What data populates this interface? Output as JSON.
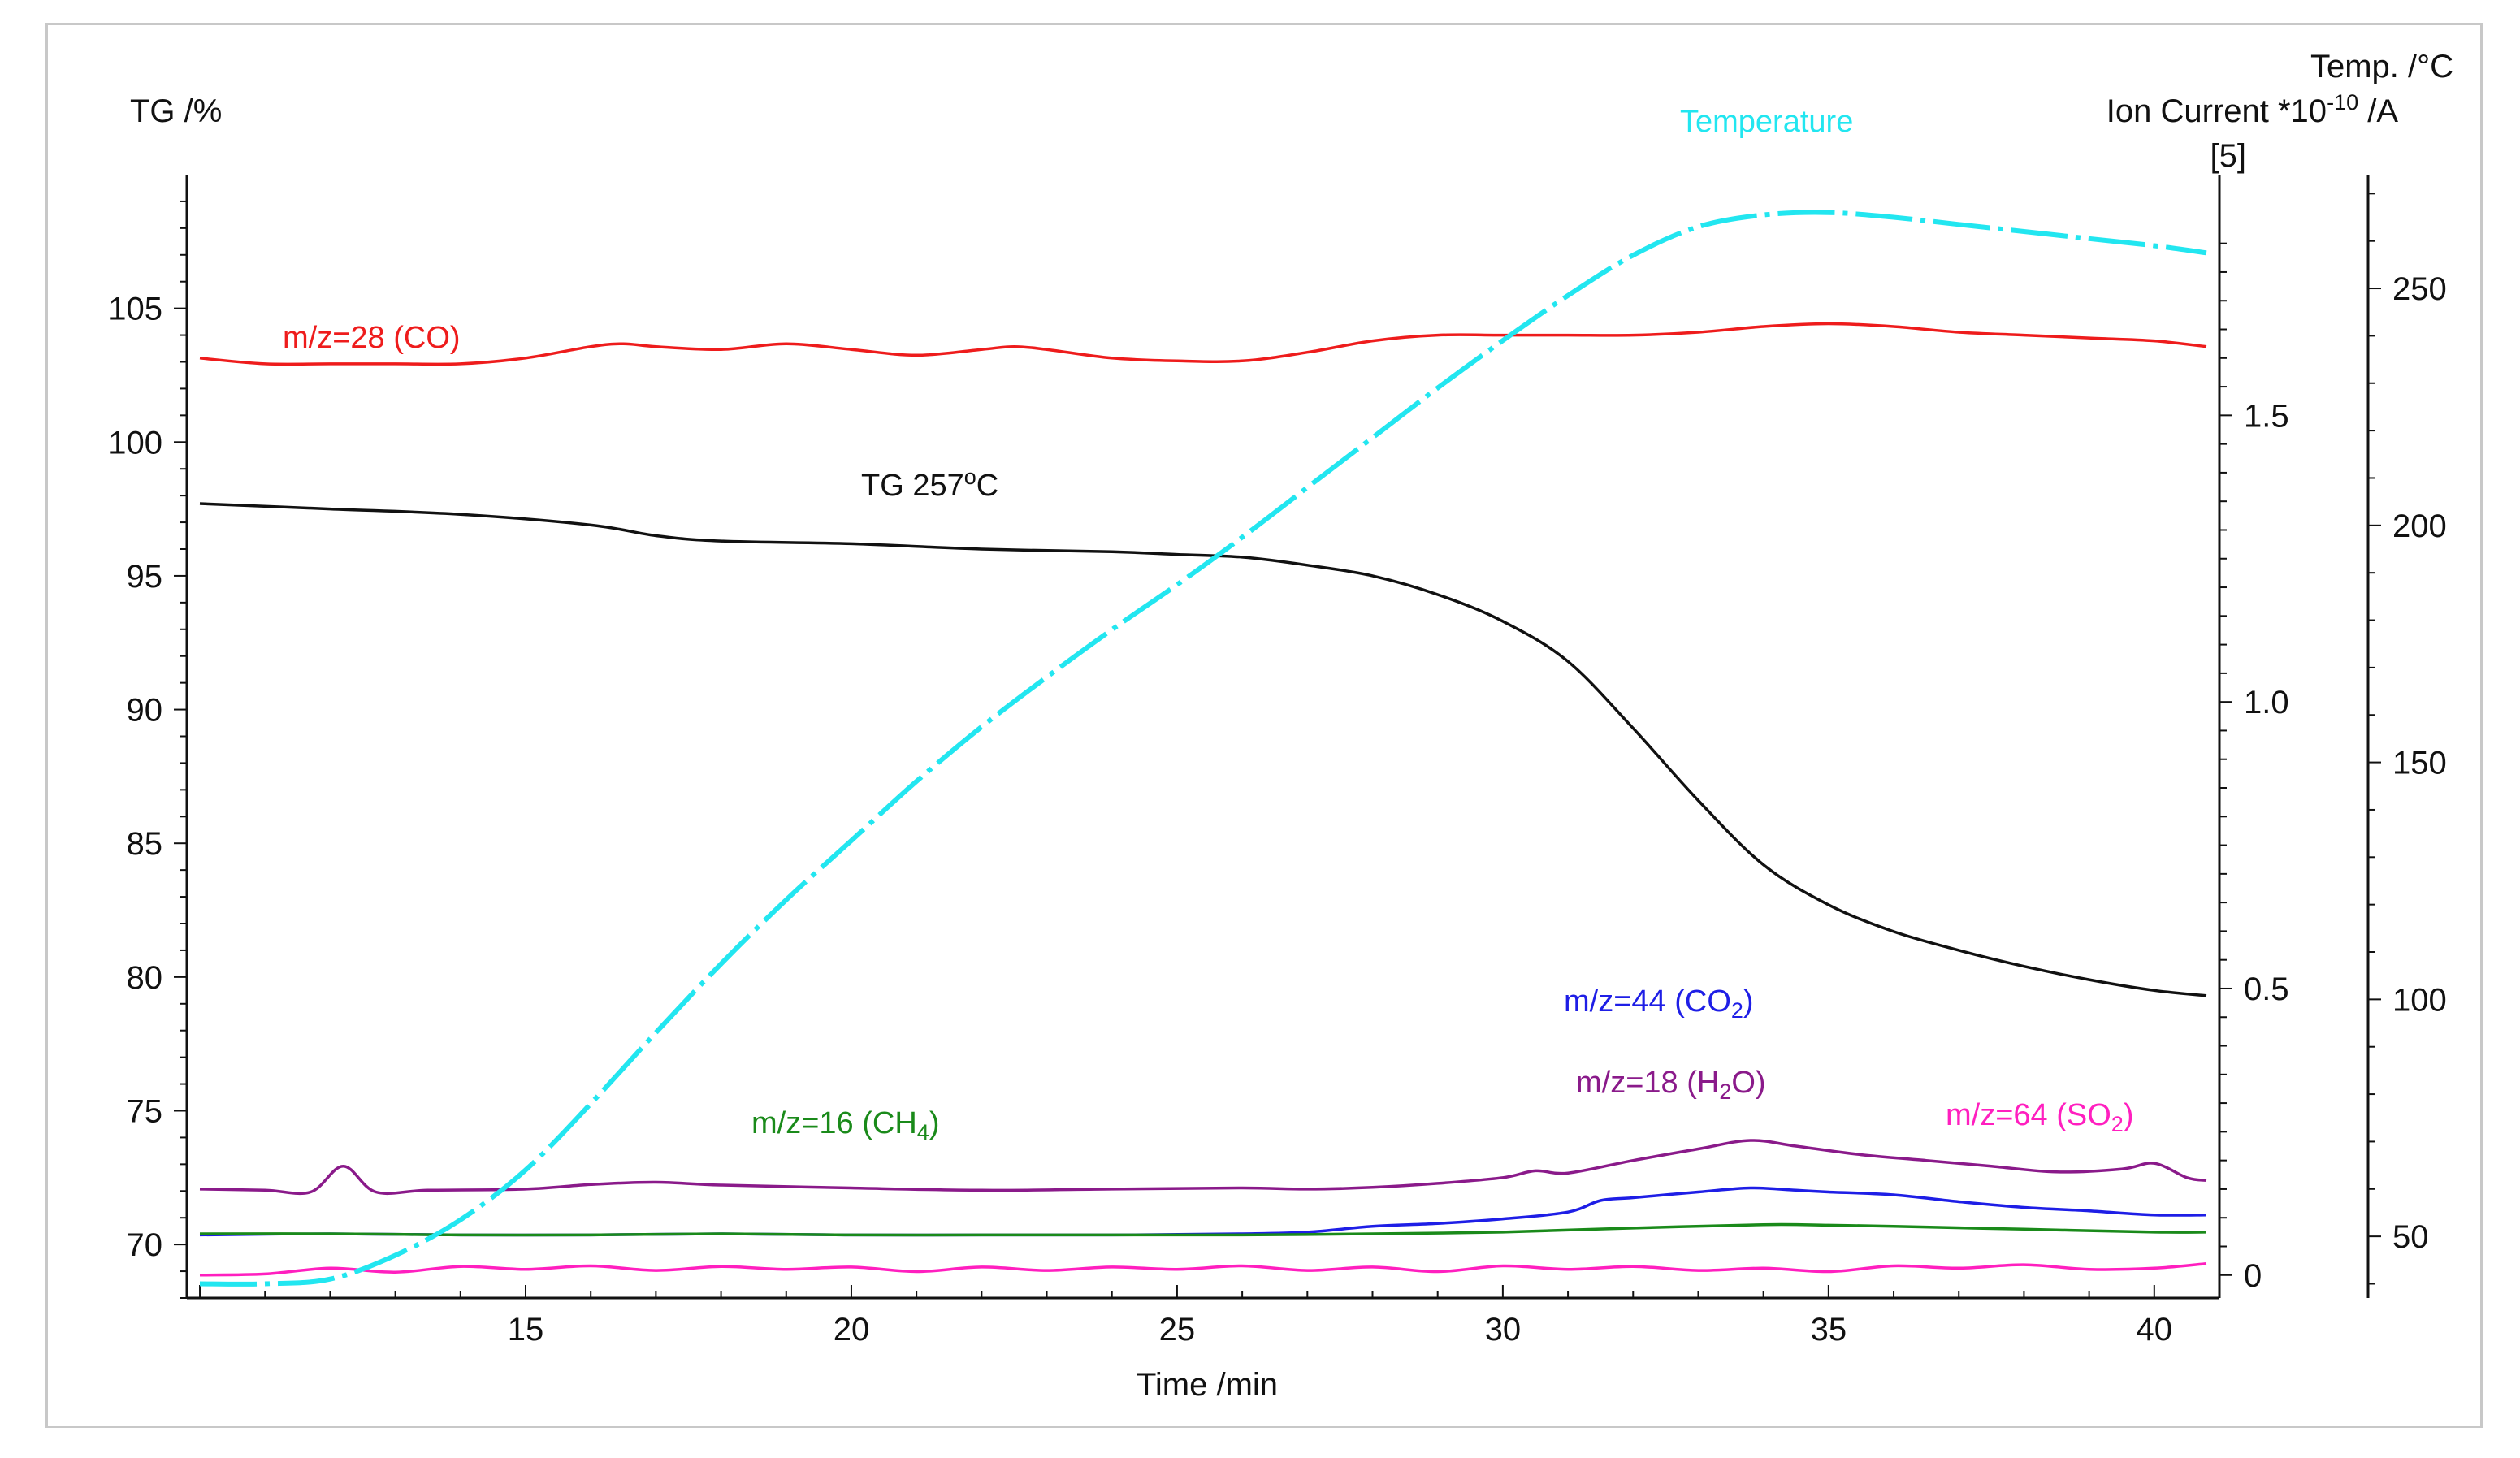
{
  "chart_data": {
    "type": "line",
    "xlabel": "Time /min",
    "x_ticks": [
      "15",
      "20",
      "25",
      "30",
      "35",
      "40"
    ],
    "xlim": [
      9.8,
      41.0
    ],
    "axes": {
      "tg": {
        "title": "TG /%",
        "ticks": [
          "70",
          "75",
          "80",
          "85",
          "90",
          "95",
          "100",
          "105"
        ],
        "ylim": [
          68.0,
          110.0
        ]
      },
      "ion": {
        "title": "Ion Current *10",
        "title_exp": "-10",
        "title_unit": " /A",
        "scale_note": "[5]",
        "ticks": [
          "0",
          "0.5",
          "1.0",
          "1.5"
        ],
        "ylim": [
          -0.04,
          1.92
        ]
      },
      "temp": {
        "title": "Temp. /°C",
        "ticks": [
          "50",
          "100",
          "150",
          "200",
          "250"
        ],
        "ylim": [
          37.0,
          274.0
        ]
      }
    },
    "series": [
      {
        "name": "TG 257°C",
        "label_main": "TG 257",
        "label_sup": "o",
        "label_tail": "C",
        "axis": "tg",
        "color": "#111111",
        "dash": "solid",
        "x": [
          10,
          12,
          14,
          16,
          17,
          18,
          20,
          22,
          24,
          25,
          26,
          27,
          28,
          29,
          30,
          31,
          32,
          33,
          34,
          35,
          36,
          37,
          38,
          39,
          40,
          40.8
        ],
        "y": [
          97.7,
          97.5,
          97.3,
          96.9,
          96.5,
          96.3,
          96.2,
          96.0,
          95.9,
          95.8,
          95.7,
          95.4,
          95.0,
          94.3,
          93.3,
          91.8,
          89.3,
          86.6,
          84.2,
          82.7,
          81.7,
          81.0,
          80.4,
          79.9,
          79.5,
          79.3
        ]
      },
      {
        "name": "m/z=28 (CO)",
        "label_main": "m/z=28 (CO)",
        "label_sub": "",
        "label_tail": "",
        "axis": "ion",
        "color": "#ee1c1c",
        "dash": "solid",
        "x": [
          10,
          11,
          12,
          13,
          14,
          15,
          16,
          16.5,
          17,
          18,
          19,
          20,
          21,
          22,
          22.5,
          23,
          24,
          25,
          26,
          27,
          28,
          29,
          30,
          31,
          32,
          33,
          34,
          35,
          36,
          37,
          38,
          39,
          40,
          40.8
        ],
        "y": [
          1.6,
          1.59,
          1.59,
          1.59,
          1.59,
          1.6,
          1.62,
          1.625,
          1.62,
          1.615,
          1.625,
          1.615,
          1.605,
          1.615,
          1.62,
          1.615,
          1.6,
          1.595,
          1.595,
          1.61,
          1.63,
          1.64,
          1.64,
          1.64,
          1.64,
          1.645,
          1.655,
          1.66,
          1.655,
          1.645,
          1.64,
          1.635,
          1.63,
          1.62
        ]
      },
      {
        "name": "m/z=18 (H2O)",
        "label_main": "m/z=18 (H",
        "label_sub": "2",
        "label_tail": "O)",
        "axis": "ion",
        "color": "#8a1a8a",
        "dash": "solid",
        "x": [
          10,
          11,
          11.7,
          12.2,
          12.7,
          13.5,
          15,
          16,
          17,
          18,
          20,
          22,
          24,
          26,
          27,
          28,
          29,
          30,
          30.5,
          31,
          32,
          33,
          33.8,
          34.5,
          35.5,
          36.5,
          37.5,
          38.5,
          39.5,
          40,
          40.5,
          40.8
        ],
        "y": [
          0.15,
          0.148,
          0.145,
          0.19,
          0.145,
          0.148,
          0.15,
          0.158,
          0.162,
          0.157,
          0.152,
          0.148,
          0.15,
          0.152,
          0.15,
          0.153,
          0.16,
          0.17,
          0.182,
          0.178,
          0.2,
          0.22,
          0.235,
          0.225,
          0.21,
          0.2,
          0.19,
          0.18,
          0.185,
          0.195,
          0.17,
          0.165
        ]
      },
      {
        "name": "m/z=44 (CO2)",
        "label_main": "m/z=44 (CO",
        "label_sub": "2",
        "label_tail": ")",
        "axis": "ion",
        "color": "#1e1ee6",
        "dash": "solid",
        "x": [
          10,
          12,
          14,
          16,
          18,
          20,
          22,
          24,
          26,
          27,
          28,
          29,
          30,
          31,
          31.5,
          32,
          33,
          33.8,
          34.5,
          35,
          36,
          37,
          38,
          39,
          40,
          40.8
        ],
        "y": [
          0.07,
          0.072,
          0.07,
          0.07,
          0.072,
          0.07,
          0.07,
          0.07,
          0.072,
          0.075,
          0.085,
          0.09,
          0.098,
          0.11,
          0.13,
          0.135,
          0.145,
          0.152,
          0.148,
          0.145,
          0.14,
          0.128,
          0.118,
          0.112,
          0.105,
          0.105
        ]
      },
      {
        "name": "m/z=16 (CH4)",
        "label_main": "m/z=16 (CH",
        "label_sub": "4",
        "label_tail": ")",
        "axis": "ion",
        "color": "#1a8a1a",
        "dash": "solid",
        "x": [
          10,
          12,
          14,
          16,
          18,
          20,
          22,
          24,
          26,
          28,
          30,
          32,
          34,
          35,
          36,
          38,
          40,
          40.8
        ],
        "y": [
          0.072,
          0.072,
          0.07,
          0.07,
          0.072,
          0.07,
          0.07,
          0.07,
          0.07,
          0.072,
          0.075,
          0.082,
          0.088,
          0.087,
          0.085,
          0.08,
          0.075,
          0.075
        ]
      },
      {
        "name": "m/z=64 (SO2)",
        "label_main": "m/z=64 (SO",
        "label_sub": "2",
        "label_tail": ")",
        "axis": "ion",
        "color": "#ff1fbf",
        "dash": "solid",
        "x": [
          10,
          11,
          12,
          13,
          14,
          15,
          16,
          17,
          18,
          19,
          20,
          21,
          22,
          23,
          24,
          25,
          26,
          27,
          28,
          29,
          30,
          31,
          32,
          33,
          34,
          35,
          36,
          37,
          38,
          39,
          40,
          40.8
        ],
        "y": [
          0.0,
          0.002,
          0.012,
          0.005,
          0.015,
          0.01,
          0.016,
          0.008,
          0.015,
          0.01,
          0.014,
          0.006,
          0.014,
          0.008,
          0.014,
          0.01,
          0.016,
          0.008,
          0.014,
          0.006,
          0.016,
          0.01,
          0.015,
          0.008,
          0.012,
          0.006,
          0.016,
          0.012,
          0.018,
          0.01,
          0.012,
          0.02
        ]
      },
      {
        "name": "Temperature",
        "label_main": "Temperature",
        "label_sub": "",
        "label_tail": "",
        "axis": "temp",
        "color": "#22e6f0",
        "dash": "dashdot",
        "x": [
          10,
          11,
          12,
          13,
          14,
          15,
          16,
          17,
          18,
          19,
          20,
          21,
          22,
          23,
          24,
          25,
          26,
          27,
          28,
          29,
          30,
          31,
          32,
          33,
          34,
          35,
          36,
          37,
          38,
          39,
          40,
          40.8
        ],
        "y": [
          40.0,
          40.0,
          41.0,
          46.0,
          53.5,
          64.0,
          78.0,
          93.0,
          107.5,
          121.0,
          133.5,
          146.0,
          157.5,
          168.0,
          178.0,
          187.5,
          197.5,
          208.0,
          218.5,
          229.0,
          239.0,
          248.5,
          257.0,
          263.0,
          265.5,
          266.0,
          265.0,
          263.5,
          262.0,
          260.5,
          259.0,
          257.5
        ]
      }
    ]
  }
}
